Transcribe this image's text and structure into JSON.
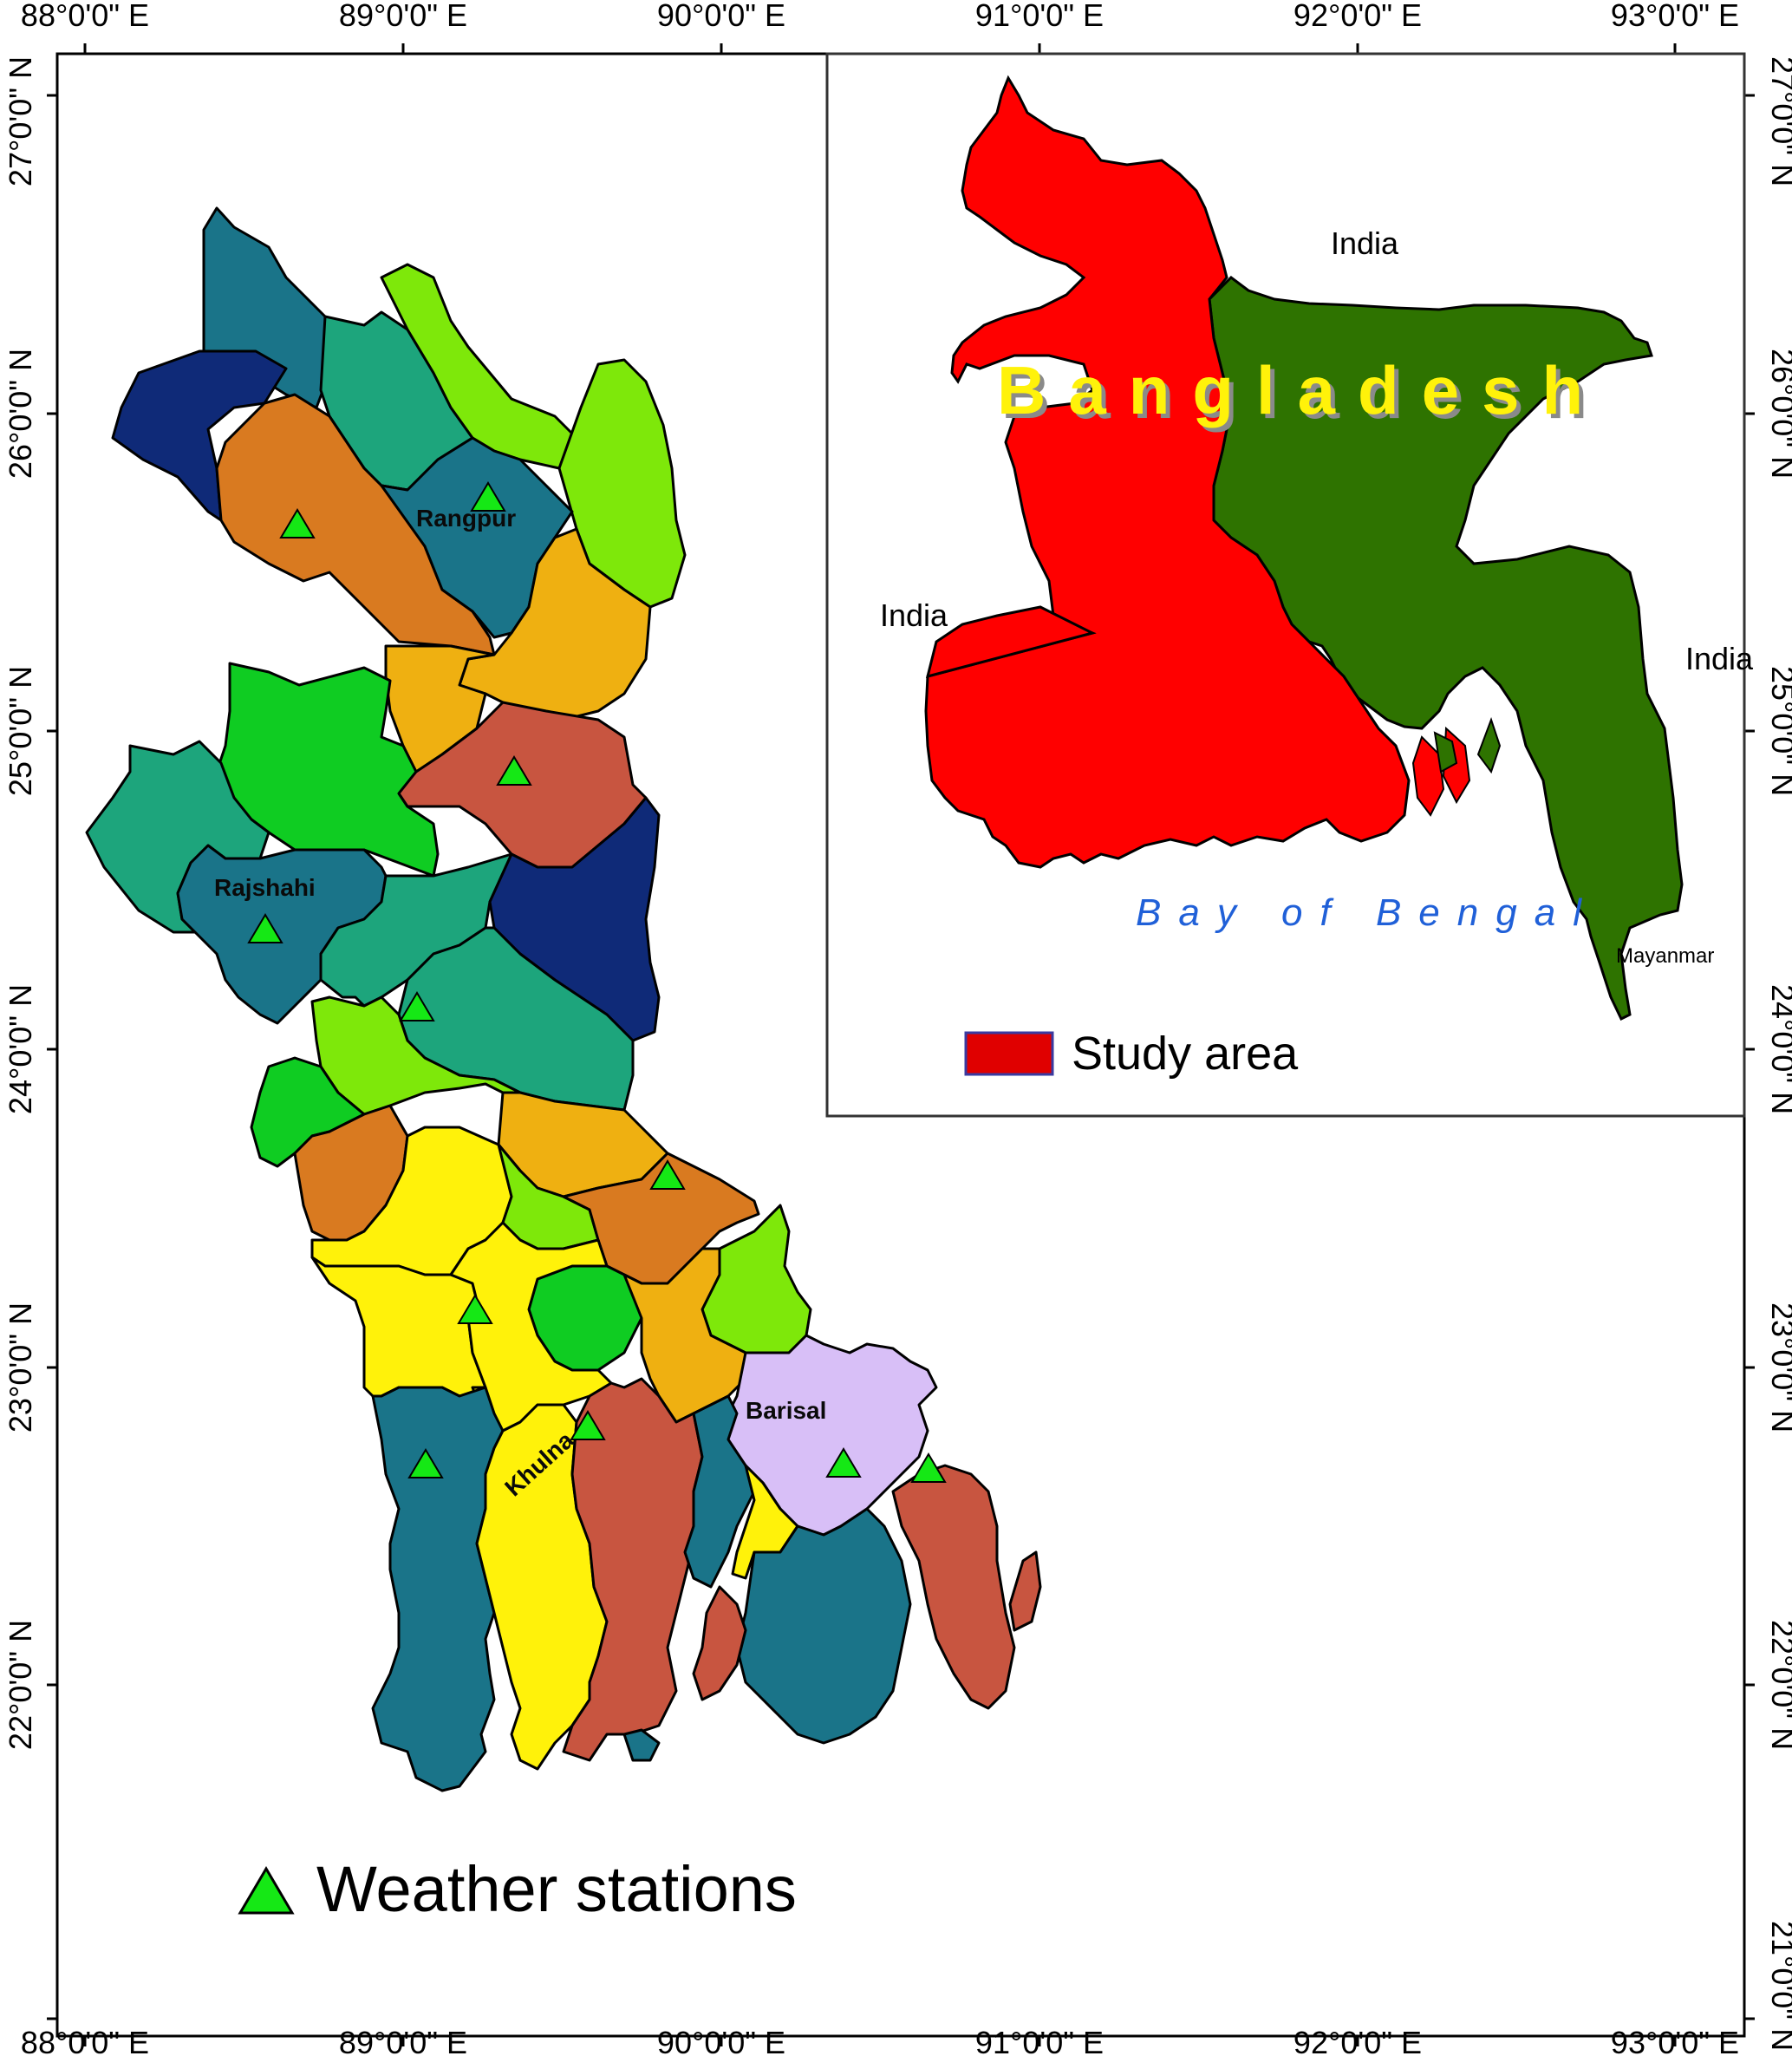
{
  "axes": {
    "lon_labels": [
      "88°0'0\" E",
      "89°0'0\" E",
      "90°0'0\" E",
      "91°0'0\" E",
      "92°0'0\" E",
      "93°0'0\" E"
    ],
    "lat_labels": [
      "27°0'0\" N",
      "26°0'0\" N",
      "25°0'0\" N",
      "24°0'0\" N",
      "23°0'0\" N",
      "22°0'0\" N",
      "21°0'0\" N"
    ]
  },
  "main_map": {
    "division_labels": {
      "rangpur": "Rangpur",
      "rajshahi": "Rajshahi",
      "khulna": "Khulna",
      "barisal": "Barisal"
    },
    "legend": {
      "label": "Weather stations"
    },
    "colors": {
      "navy": "#0f2a78",
      "teal": "#1a7489",
      "seagreen": "#1da57c",
      "lime": "#7ee80a",
      "green": "#0fcc22",
      "orange": "#d97a20",
      "amber": "#efb011",
      "rust": "#c85540",
      "yellow": "#fff20a",
      "lavender": "#d8bff7",
      "station": "#15e815"
    }
  },
  "inset": {
    "country_label": "Bangladesh",
    "country_label_color": "#fff20a",
    "india_labels": [
      "India",
      "India",
      "India"
    ],
    "bay_label": "Bay of Bengal",
    "bay_label_color": "#2060d8",
    "myanmar_label": "Mayanmar",
    "legend_label": "Study area",
    "colors": {
      "study_area": "#ff0000",
      "rest": "#2e7300",
      "legend_swatch": "#e00000"
    }
  }
}
